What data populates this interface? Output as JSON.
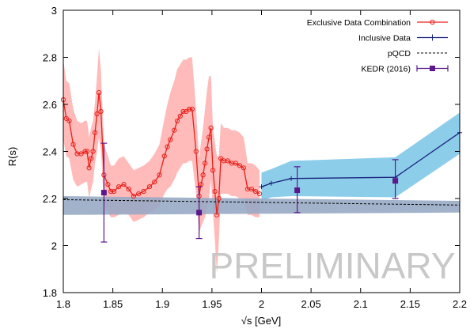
{
  "chart_data": {
    "type": "line",
    "xlabel": "√s [GeV]",
    "ylabel": "R(s)",
    "xlim": [
      1.8,
      2.2
    ],
    "ylim": [
      1.8,
      3.0
    ],
    "x_ticks": [
      "1.8",
      "1.85",
      "1.9",
      "1.95",
      "2",
      "2.05",
      "2.1",
      "2.15",
      "2.2"
    ],
    "y_ticks": [
      "1.8",
      "2",
      "2.2",
      "2.4",
      "2.6",
      "2.8",
      "3"
    ],
    "x_tick_values": [
      1.8,
      1.85,
      1.9,
      1.95,
      2.0,
      2.05,
      2.1,
      2.15,
      2.2
    ],
    "y_tick_values": [
      1.8,
      2.0,
      2.2,
      2.4,
      2.6,
      2.8,
      3.0
    ],
    "grid": false,
    "legend_position": "top-right",
    "watermark": "PRELIMINARY",
    "series": [
      {
        "name": "Exclusive Data Combination",
        "style": "line-open-circles",
        "color": "#e8201a",
        "band_color": "#ffb3b3",
        "x": [
          1.8,
          1.803,
          1.806,
          1.81,
          1.814,
          1.818,
          1.822,
          1.824,
          1.826,
          1.828,
          1.83,
          1.832,
          1.834,
          1.836,
          1.838,
          1.841,
          1.845,
          1.848,
          1.851,
          1.856,
          1.861,
          1.866,
          1.871,
          1.876,
          1.881,
          1.887,
          1.892,
          1.897,
          1.902,
          1.905,
          1.908,
          1.912,
          1.915,
          1.918,
          1.921,
          1.924,
          1.927,
          1.93,
          1.934,
          1.937,
          1.939,
          1.941,
          1.943,
          1.945,
          1.947,
          1.949,
          1.951,
          1.953,
          1.955,
          1.957,
          1.959,
          1.962,
          1.966,
          1.97,
          1.974,
          1.978,
          1.982,
          1.986,
          1.99,
          1.994,
          1.998
        ],
        "y": [
          2.62,
          2.54,
          2.53,
          2.43,
          2.39,
          2.39,
          2.4,
          2.4,
          2.33,
          2.37,
          2.4,
          2.48,
          2.56,
          2.65,
          2.57,
          2.3,
          2.26,
          2.23,
          2.23,
          2.25,
          2.26,
          2.24,
          2.21,
          2.22,
          2.23,
          2.25,
          2.27,
          2.3,
          2.38,
          2.42,
          2.45,
          2.49,
          2.53,
          2.55,
          2.57,
          2.57,
          2.58,
          2.58,
          2.4,
          2.21,
          2.26,
          2.3,
          2.35,
          2.41,
          2.46,
          2.5,
          2.32,
          2.23,
          2.13,
          2.2,
          2.37,
          2.36,
          2.36,
          2.35,
          2.35,
          2.34,
          2.33,
          2.24,
          2.24,
          2.23,
          2.22
        ],
        "band_low": [
          2.45,
          2.38,
          2.37,
          2.28,
          2.25,
          2.26,
          2.27,
          2.27,
          2.2,
          2.24,
          2.27,
          2.35,
          2.4,
          2.46,
          2.4,
          2.17,
          2.14,
          2.12,
          2.12,
          2.13,
          2.14,
          2.13,
          2.1,
          2.11,
          2.12,
          2.14,
          2.15,
          2.17,
          2.22,
          2.24,
          2.25,
          2.28,
          2.31,
          2.33,
          2.35,
          2.35,
          2.36,
          2.36,
          2.22,
          2.05,
          2.08,
          2.1,
          2.12,
          2.16,
          2.2,
          2.28,
          2.14,
          2.02,
          1.88,
          2.02,
          2.22,
          2.22,
          2.22,
          2.21,
          2.21,
          2.2,
          2.2,
          2.13,
          2.13,
          2.12,
          2.12
        ],
        "band_high": [
          2.79,
          2.7,
          2.69,
          2.58,
          2.53,
          2.52,
          2.53,
          2.53,
          2.46,
          2.5,
          2.53,
          2.61,
          2.72,
          2.84,
          2.74,
          2.43,
          2.38,
          2.34,
          2.34,
          2.37,
          2.38,
          2.35,
          2.32,
          2.33,
          2.34,
          2.36,
          2.39,
          2.43,
          2.54,
          2.6,
          2.65,
          2.7,
          2.75,
          2.77,
          2.79,
          2.79,
          2.8,
          2.8,
          2.58,
          2.37,
          2.44,
          2.5,
          2.58,
          2.66,
          2.72,
          2.72,
          2.5,
          2.44,
          2.38,
          2.38,
          2.52,
          2.5,
          2.5,
          2.49,
          2.49,
          2.48,
          2.46,
          2.35,
          2.35,
          2.34,
          2.32
        ]
      },
      {
        "name": "Inclusive Data",
        "style": "line-plus-markers",
        "color": "#1a237e",
        "band_color": "#7fc8e8",
        "x": [
          2.0,
          2.01,
          2.03,
          2.135,
          2.2
        ],
        "y": [
          2.25,
          2.265,
          2.285,
          2.29,
          2.48
        ],
        "band_low": [
          2.19,
          2.205,
          2.21,
          2.205,
          2.39
        ],
        "band_high": [
          2.31,
          2.325,
          2.36,
          2.375,
          2.565
        ]
      },
      {
        "name": "pQCD",
        "style": "dashed-line",
        "color": "#000000",
        "band_color": "#98aac4",
        "x": [
          1.8,
          2.2
        ],
        "y": [
          2.195,
          2.172
        ],
        "band_low": [
          2.13,
          2.14
        ],
        "band_high": [
          2.21,
          2.19
        ]
      },
      {
        "name": "KEDR (2016)",
        "style": "square-errorbars",
        "color": "#5b188a",
        "x": [
          1.841,
          1.937,
          2.036,
          2.135
        ],
        "y": [
          2.225,
          2.14,
          2.235,
          2.275
        ],
        "err_low": [
          0.21,
          0.11,
          0.095,
          0.075
        ],
        "err_high": [
          0.21,
          0.11,
          0.1,
          0.09
        ]
      }
    ]
  }
}
